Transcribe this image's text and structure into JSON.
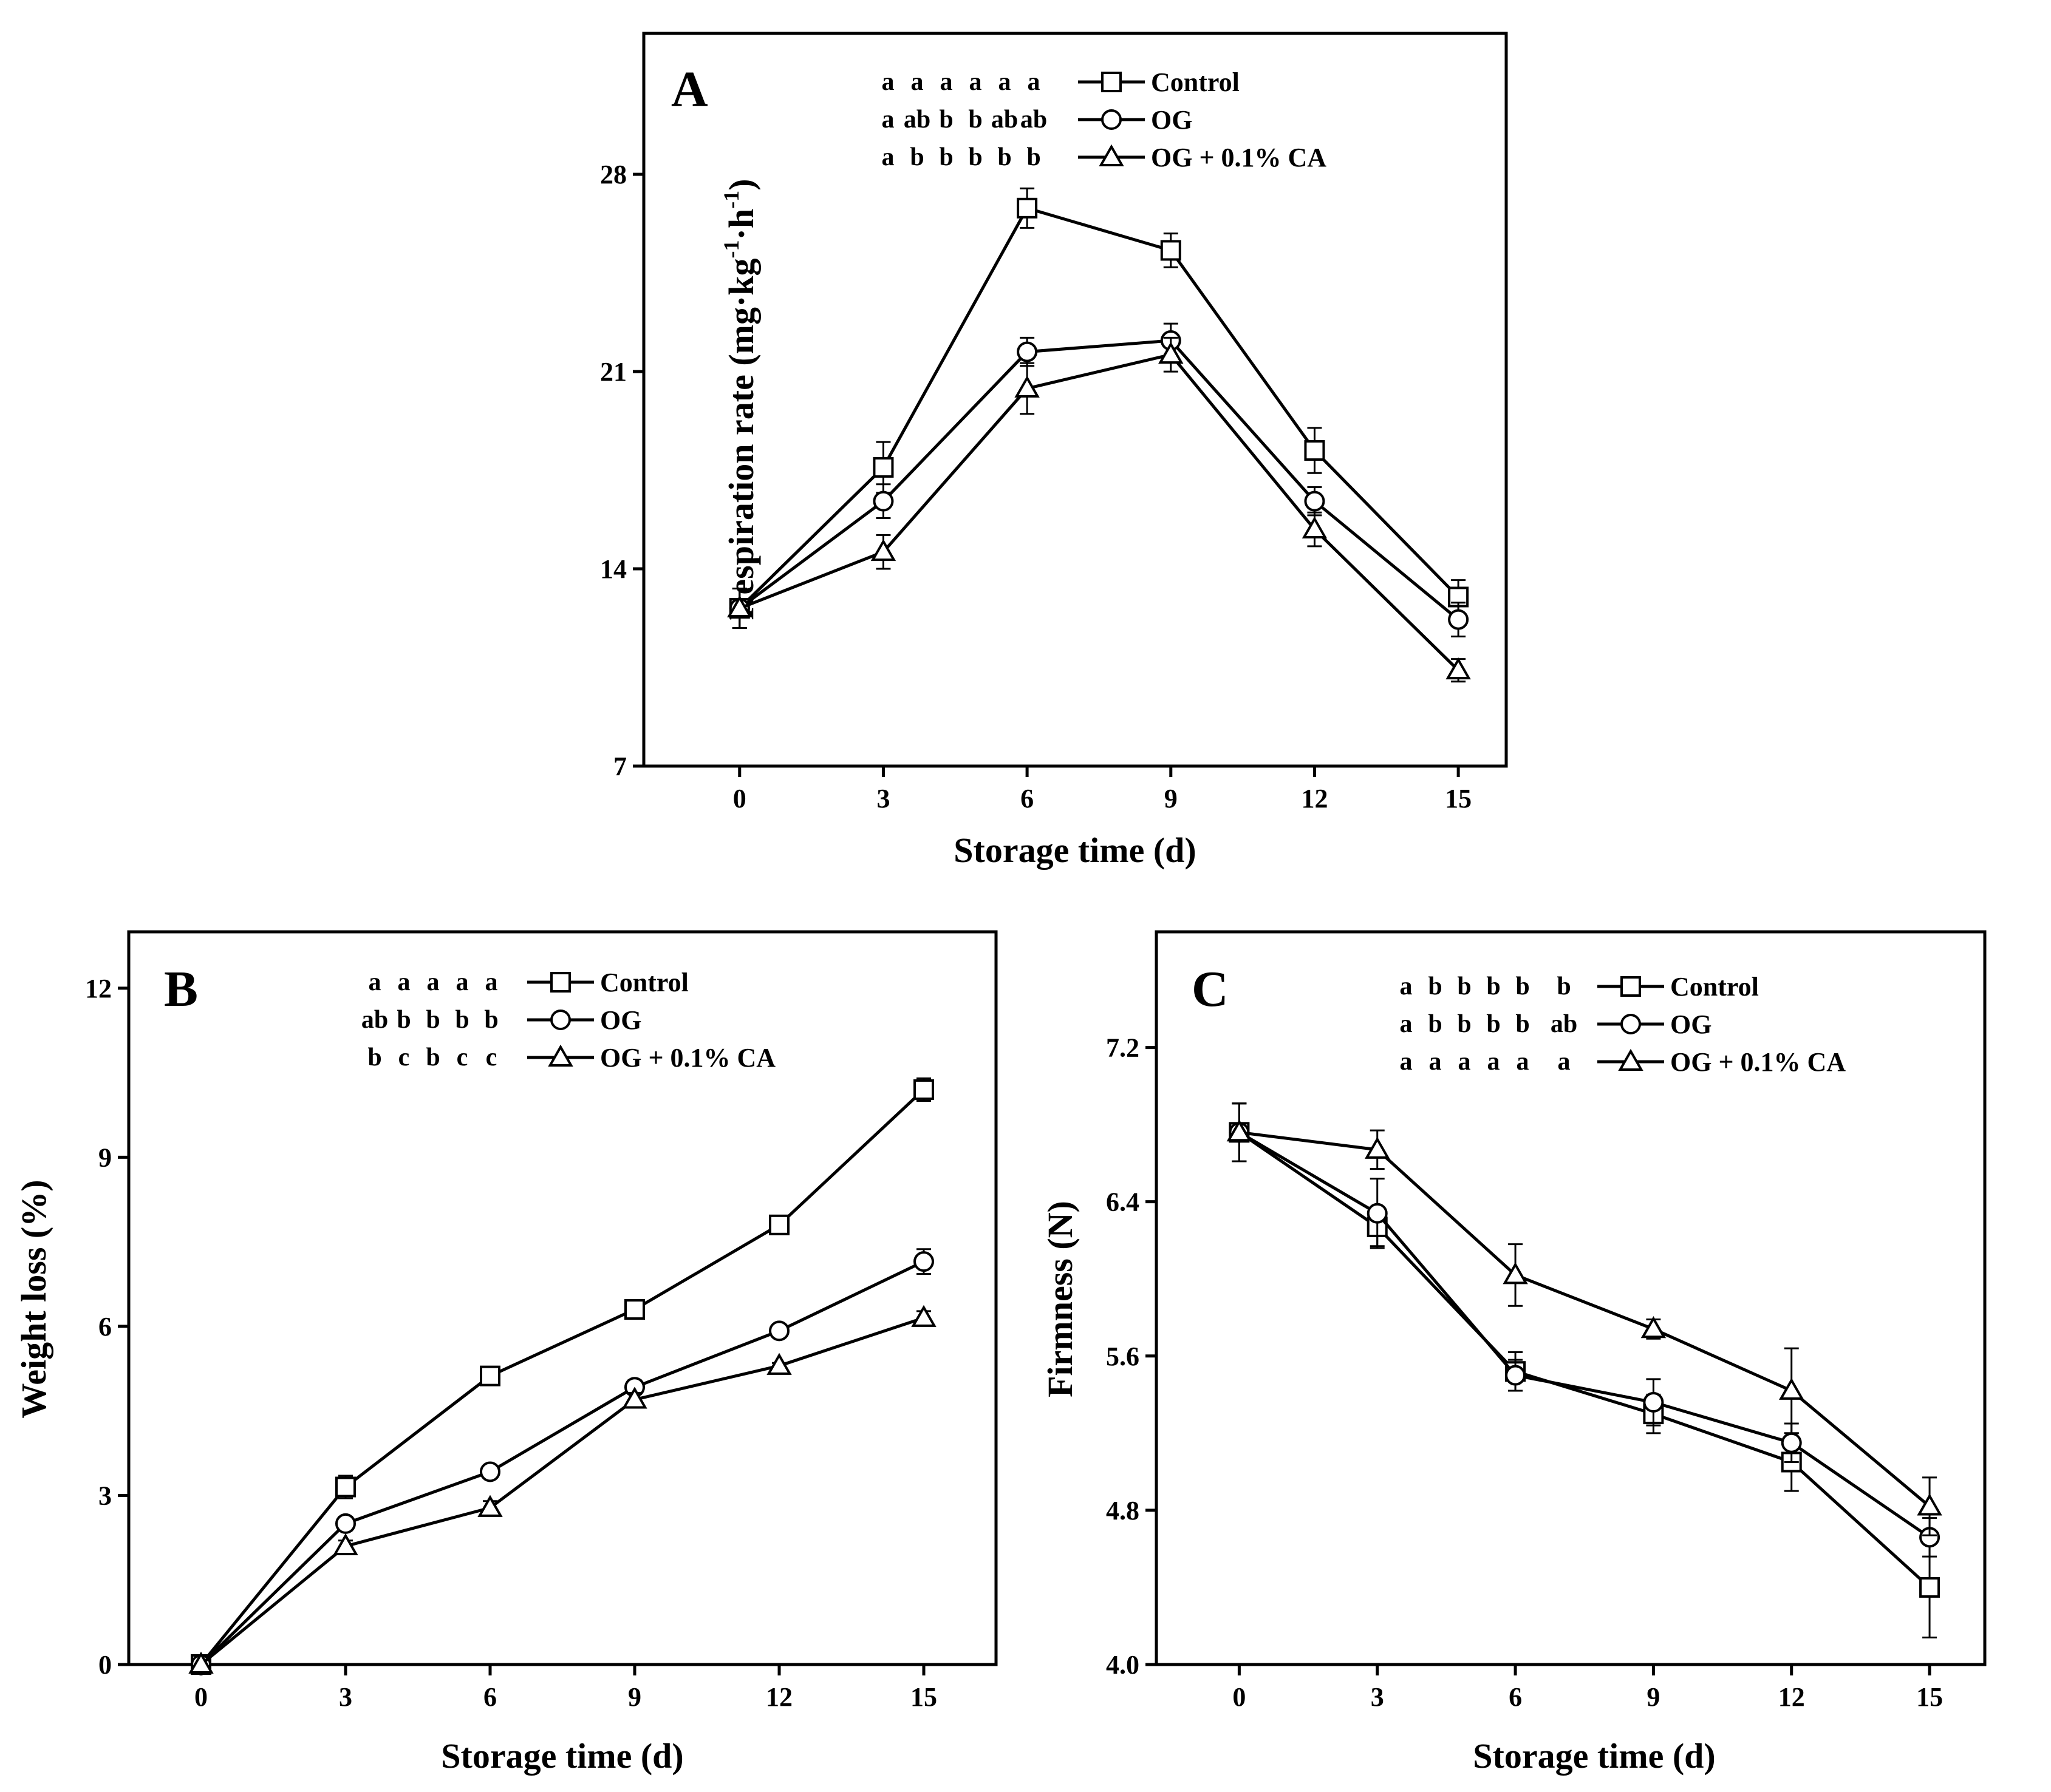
{
  "figure": {
    "x_axis_title": "Storage time (d)"
  },
  "chart_data": [
    {
      "panel": "A",
      "type": "line",
      "xlabel": "Storage time (d)",
      "ylabel_main": "Respiration rate (mg·kg",
      "ylabel_sup1": "-1",
      "ylabel_mid": "·h",
      "ylabel_sup2": "-1",
      "ylabel_end": ")",
      "ylabel": "Respiration rate (mg·kg-1·h-1)",
      "x": [
        0,
        3,
        6,
        9,
        12,
        15
      ],
      "xlim": [
        -2,
        16
      ],
      "ylim": [
        7,
        33
      ],
      "yticks": [
        7,
        14,
        21,
        28
      ],
      "ytick_labels": [
        "7",
        "14",
        "21",
        "28"
      ],
      "xticks": [
        0,
        3,
        6,
        9,
        12,
        15
      ],
      "xtick_labels": [
        "0",
        "3",
        "6",
        "9",
        "12",
        "15"
      ],
      "legend_position": "top-right",
      "series": [
        {
          "name": "Control",
          "marker": "square",
          "values": [
            12.6,
            17.6,
            26.8,
            25.3,
            18.2,
            13.0
          ],
          "errors": [
            0.7,
            0.9,
            0.7,
            0.6,
            0.8,
            0.6
          ],
          "sig": [
            "a",
            "a",
            "a",
            "a",
            "a",
            "a"
          ]
        },
        {
          "name": "OG",
          "marker": "circle",
          "values": [
            12.6,
            16.4,
            21.7,
            22.1,
            16.4,
            12.2
          ],
          "errors": [
            0.7,
            0.6,
            0.5,
            0.6,
            0.5,
            0.6
          ],
          "sig": [
            "a",
            "ab",
            "b",
            "b",
            "ab",
            "ab"
          ]
        },
        {
          "name": "OG + 0.1% CA",
          "marker": "triangle",
          "values": [
            12.6,
            14.6,
            20.4,
            21.6,
            15.4,
            10.4
          ],
          "errors": [
            0.7,
            0.6,
            0.9,
            0.6,
            0.6,
            0.4
          ],
          "sig": [
            "a",
            "b",
            "b",
            "b",
            "b",
            "b"
          ]
        }
      ]
    },
    {
      "panel": "B",
      "type": "line",
      "xlabel": "Storage time (d)",
      "ylabel": "Weight loss (%)",
      "x": [
        0,
        3,
        6,
        9,
        12,
        15
      ],
      "xlim": [
        -1.5,
        16.5
      ],
      "ylim": [
        0,
        13
      ],
      "yticks": [
        0,
        3,
        6,
        9,
        12
      ],
      "ytick_labels": [
        "0",
        "3",
        "6",
        "9",
        "12"
      ],
      "xticks": [
        0,
        3,
        6,
        9,
        12,
        15
      ],
      "xtick_labels": [
        "0",
        "3",
        "6",
        "9",
        "12",
        "15"
      ],
      "legend_position": "top-center",
      "series": [
        {
          "name": "Control",
          "marker": "square",
          "values": [
            0,
            3.15,
            5.12,
            6.3,
            7.8,
            10.2
          ],
          "errors": [
            0,
            0.2,
            0.05,
            0.15,
            0.15,
            0.2
          ],
          "sig": [
            "a",
            "a",
            "a",
            "a",
            "a"
          ]
        },
        {
          "name": "OG",
          "marker": "circle",
          "values": [
            0,
            2.5,
            3.42,
            4.92,
            5.92,
            7.15
          ],
          "errors": [
            0,
            0.12,
            0.05,
            0.12,
            0.05,
            0.22
          ],
          "sig": [
            "ab",
            "b",
            "b",
            "b",
            "b"
          ]
        },
        {
          "name": "OG + 0.1% CA",
          "marker": "triangle",
          "values": [
            0,
            2.1,
            2.78,
            4.7,
            5.3,
            6.15
          ],
          "errors": [
            0,
            0.1,
            0.12,
            0.12,
            0.05,
            0.12
          ],
          "sig": [
            "b",
            "c",
            "b",
            "c",
            "c"
          ]
        }
      ]
    },
    {
      "panel": "C",
      "type": "line",
      "xlabel": "Storage time (d)",
      "ylabel": "Firmness (N)",
      "x": [
        0,
        3,
        6,
        9,
        12,
        15
      ],
      "xlim": [
        -1.8,
        16.2
      ],
      "ylim": [
        4.0,
        7.8
      ],
      "yticks": [
        4.0,
        4.8,
        5.6,
        6.4,
        7.2
      ],
      "ytick_labels": [
        "4.0",
        "4.8",
        "5.6",
        "6.4",
        "7.2"
      ],
      "xticks": [
        0,
        3,
        6,
        9,
        12,
        15
      ],
      "xtick_labels": [
        "0",
        "3",
        "6",
        "9",
        "12",
        "15"
      ],
      "legend_position": "top-center",
      "series": [
        {
          "name": "Control",
          "marker": "square",
          "values": [
            6.76,
            6.27,
            5.52,
            5.3,
            5.05,
            4.4
          ],
          "errors": [
            0.15,
            0.1,
            0.1,
            0.1,
            0.15,
            0.26
          ],
          "sig": [
            "a",
            "b",
            "b",
            "b",
            "b",
            "b"
          ]
        },
        {
          "name": "OG",
          "marker": "circle",
          "values": [
            6.76,
            6.34,
            5.5,
            5.36,
            5.15,
            4.66
          ],
          "errors": [
            0.15,
            0.18,
            0.08,
            0.12,
            0.1,
            0.1
          ],
          "sig": [
            "a",
            "b",
            "b",
            "b",
            "b",
            "ab"
          ]
        },
        {
          "name": "OG + 0.1% CA",
          "marker": "triangle",
          "values": [
            6.76,
            6.67,
            6.02,
            5.74,
            5.42,
            4.82
          ],
          "errors": [
            0.15,
            0.1,
            0.16,
            0.05,
            0.22,
            0.15
          ],
          "sig": [
            "a",
            "a",
            "a",
            "a",
            "a",
            "a"
          ]
        }
      ]
    }
  ]
}
